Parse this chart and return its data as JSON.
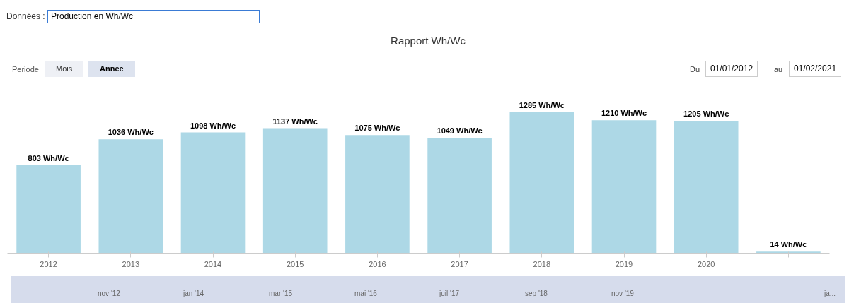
{
  "chart_data": {
    "type": "bar",
    "title": "Rapport Wh/Wc",
    "categories": [
      "2012",
      "2013",
      "2014",
      "2015",
      "2016",
      "2017",
      "2018",
      "2019",
      "2020",
      null
    ],
    "values": [
      803,
      1036,
      1098,
      1137,
      1075,
      1049,
      1285,
      1210,
      1205,
      14
    ],
    "value_labels": [
      "803 Wh/Wc",
      "1036 Wh/Wc",
      "1098 Wh/Wc",
      "1137 Wh/Wc",
      "1075 Wh/Wc",
      "1049 Wh/Wc",
      "1285 Wh/Wc",
      "1210 Wh/Wc",
      "1205 Wh/Wc",
      "14 Wh/Wc"
    ],
    "color": "#add8e6",
    "annotations": [
      "Données :",
      "Production en Wh/Wc",
      "Periode",
      "Mois",
      "Annee",
      "Du",
      "01/01/2012",
      "au",
      "01/02/2021",
      "nov '12",
      "jan '14",
      "mar '15",
      "mai '16",
      "juil '17",
      "sep '18",
      "nov '19",
      "ja..."
    ]
  }
}
